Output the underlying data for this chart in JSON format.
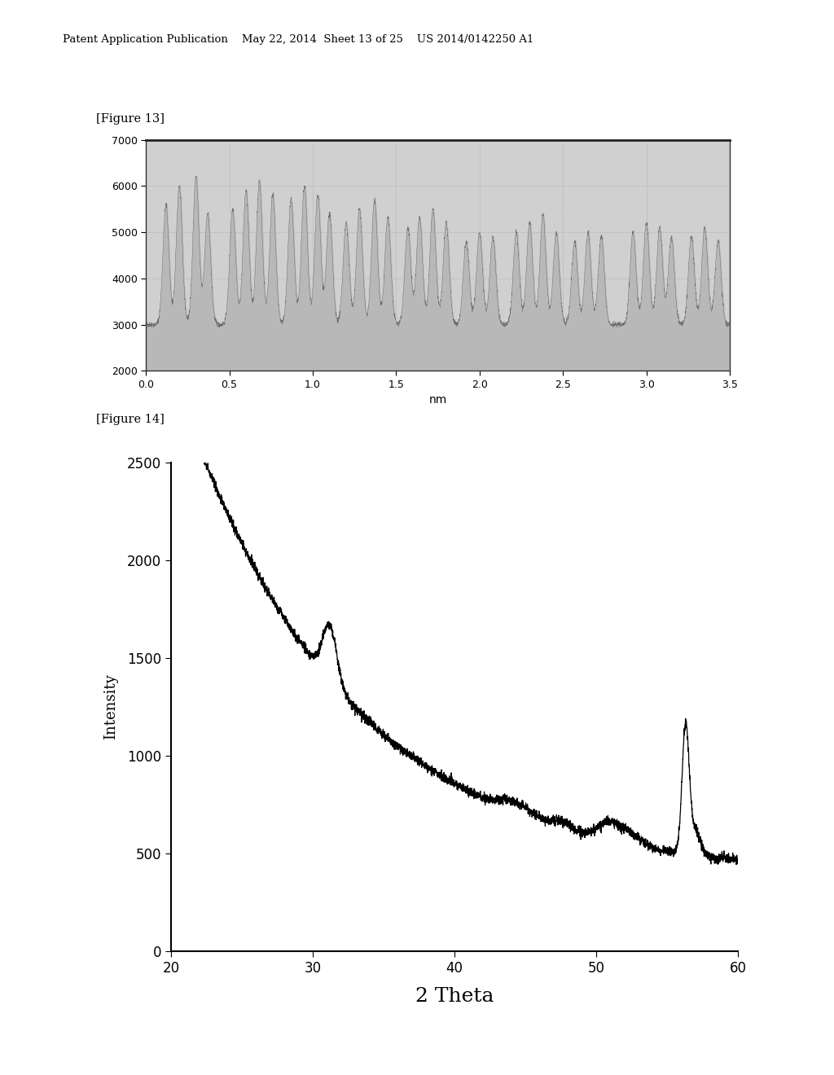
{
  "header_text": "Patent Application Publication    May 22, 2014  Sheet 13 of 25    US 2014/0142250 A1",
  "fig13_label": "[Figure 13]",
  "fig14_label": "[Figure 14]",
  "fig13": {
    "ylim": [
      2000,
      7000
    ],
    "xlim": [
      0.0,
      3.5
    ],
    "yticks": [
      2000,
      3000,
      4000,
      5000,
      6000,
      7000
    ],
    "xticks": [
      0.0,
      0.5,
      1.0,
      1.5,
      2.0,
      2.5,
      3.0,
      3.5
    ],
    "xlabel": "nm",
    "plot_bg_color": "#d0d0d0"
  },
  "fig14": {
    "ylim": [
      0,
      2500
    ],
    "xlim": [
      20,
      60
    ],
    "yticks": [
      0,
      500,
      1000,
      1500,
      2000,
      2500
    ],
    "xticks": [
      20,
      30,
      40,
      50,
      60
    ],
    "xlabel": "2 Theta",
    "ylabel": "Intensity",
    "xstart": 22
  }
}
